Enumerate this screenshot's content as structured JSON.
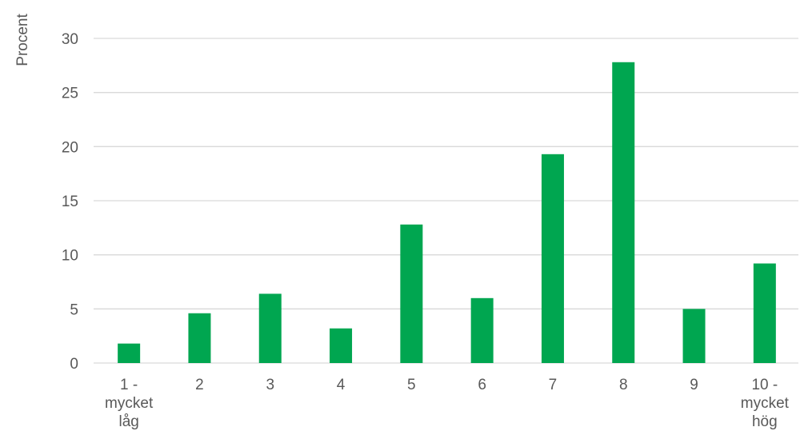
{
  "chart_data": {
    "type": "bar",
    "categories": [
      [
        "1 -",
        "mycket",
        "låg"
      ],
      [
        "2"
      ],
      [
        "3"
      ],
      [
        "4"
      ],
      [
        "5"
      ],
      [
        "6"
      ],
      [
        "7"
      ],
      [
        "8"
      ],
      [
        "9"
      ],
      [
        "10 -",
        "mycket",
        "hög"
      ]
    ],
    "values": [
      1.8,
      4.6,
      6.4,
      3.2,
      12.8,
      6.0,
      19.3,
      27.8,
      5.0,
      9.2
    ],
    "ylabel": "Procent",
    "xlabel": "",
    "ylim": [
      0,
      30
    ],
    "yticks": [
      "0",
      "5",
      "10",
      "15",
      "20",
      "25",
      "30"
    ],
    "grid": true,
    "bar_color": "#00A650",
    "grid_color": "#D9D9D9",
    "text_color": "#595959"
  }
}
